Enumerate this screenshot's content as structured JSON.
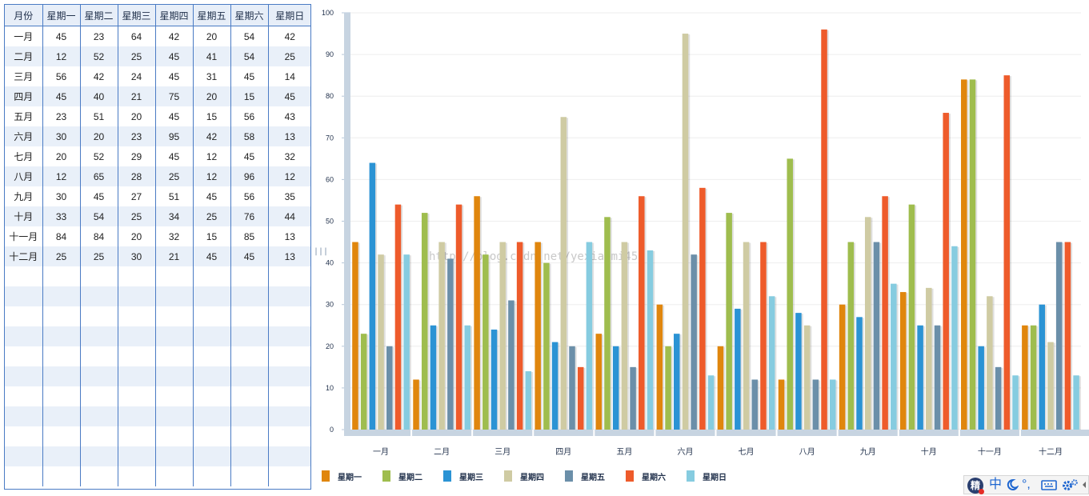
{
  "grid": {
    "headers": [
      "月份",
      "星期一",
      "星期二",
      "星期三",
      "星期四",
      "星期五",
      "星期六",
      "星期日"
    ],
    "rows": [
      [
        "一月",
        "45",
        "23",
        "64",
        "42",
        "20",
        "54",
        "42"
      ],
      [
        "二月",
        "12",
        "52",
        "25",
        "45",
        "41",
        "54",
        "25"
      ],
      [
        "三月",
        "56",
        "42",
        "24",
        "45",
        "31",
        "45",
        "14"
      ],
      [
        "四月",
        "45",
        "40",
        "21",
        "75",
        "20",
        "15",
        "45"
      ],
      [
        "五月",
        "23",
        "51",
        "20",
        "45",
        "15",
        "56",
        "43"
      ],
      [
        "六月",
        "30",
        "20",
        "23",
        "95",
        "42",
        "58",
        "13"
      ],
      [
        "七月",
        "20",
        "52",
        "29",
        "45",
        "12",
        "45",
        "32"
      ],
      [
        "八月",
        "12",
        "65",
        "28",
        "25",
        "12",
        "96",
        "12"
      ],
      [
        "九月",
        "30",
        "45",
        "27",
        "51",
        "45",
        "56",
        "35"
      ],
      [
        "十月",
        "33",
        "54",
        "25",
        "34",
        "25",
        "76",
        "44"
      ],
      [
        "十一月",
        "84",
        "84",
        "20",
        "32",
        "15",
        "85",
        "13"
      ],
      [
        "十二月",
        "25",
        "25",
        "30",
        "21",
        "45",
        "45",
        "13"
      ]
    ]
  },
  "splitter_glyph": "|||",
  "watermark": "http://blog.csdn.net/yexiaomi45",
  "chart_data": {
    "type": "bar",
    "categories": [
      "一月",
      "二月",
      "三月",
      "四月",
      "五月",
      "六月",
      "七月",
      "八月",
      "九月",
      "十月",
      "十一月",
      "十二月"
    ],
    "ylim": [
      0,
      100
    ],
    "yticks": [
      0,
      10,
      20,
      30,
      40,
      50,
      60,
      70,
      80,
      90,
      100
    ],
    "grid": true,
    "legend_position": "bottom-left",
    "series": [
      {
        "name": "星期一",
        "color": "#e0860d",
        "values": [
          45,
          12,
          56,
          45,
          23,
          30,
          20,
          12,
          30,
          33,
          84,
          25
        ]
      },
      {
        "name": "星期二",
        "color": "#9fbd4e",
        "values": [
          23,
          52,
          42,
          40,
          51,
          20,
          52,
          65,
          45,
          54,
          84,
          25
        ]
      },
      {
        "name": "星期三",
        "color": "#2b93d4",
        "values": [
          64,
          25,
          24,
          21,
          20,
          23,
          29,
          28,
          27,
          25,
          20,
          30
        ]
      },
      {
        "name": "星期四",
        "color": "#cfcba3",
        "values": [
          42,
          45,
          45,
          75,
          45,
          95,
          45,
          25,
          51,
          34,
          32,
          21
        ]
      },
      {
        "name": "星期五",
        "color": "#6b8fa9",
        "values": [
          20,
          41,
          31,
          20,
          15,
          42,
          12,
          12,
          45,
          25,
          15,
          45
        ]
      },
      {
        "name": "星期六",
        "color": "#ee5b2b",
        "values": [
          54,
          54,
          45,
          15,
          56,
          58,
          45,
          96,
          56,
          76,
          85,
          45
        ]
      },
      {
        "name": "星期日",
        "color": "#86cce0",
        "values": [
          42,
          25,
          14,
          45,
          43,
          13,
          32,
          12,
          35,
          44,
          13,
          13
        ]
      }
    ]
  },
  "ime": {
    "logo": "精",
    "lang": "中",
    "moon_icon": "moon-icon",
    "punct": "°,",
    "keyboard_icon": "keyboard-icon",
    "settings_icon": "gear-icon",
    "more_icon": "chevron-left-icon"
  }
}
